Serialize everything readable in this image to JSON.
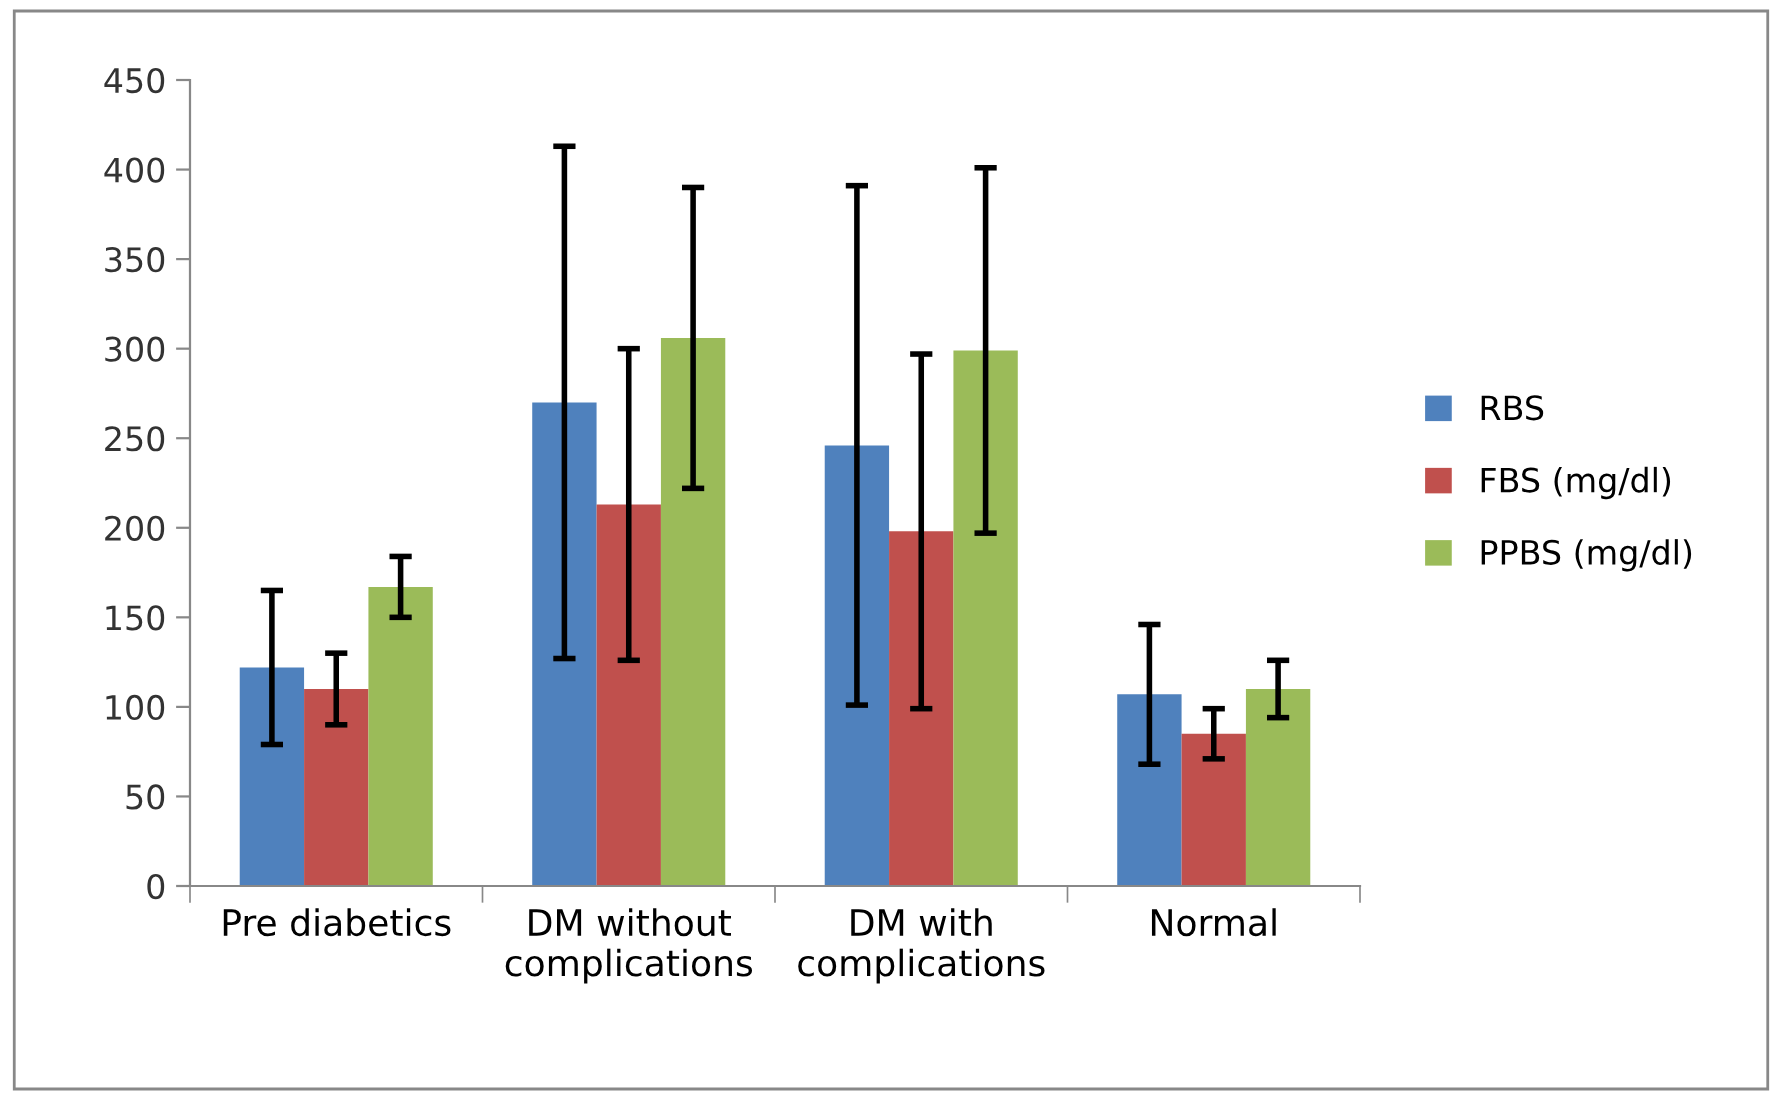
{
  "chart_data": {
    "type": "bar",
    "categories": [
      "Pre diabetics",
      "DM without\ncomplications",
      "DM with\ncomplications",
      "Normal"
    ],
    "series": [
      {
        "name": "RBS",
        "color": "#4f81bd",
        "values": [
          122,
          270,
          246,
          107
        ],
        "errors": [
          43,
          143,
          145,
          39
        ]
      },
      {
        "name": "FBS (mg/dl)",
        "color": "#c0504d",
        "values": [
          110,
          213,
          198,
          85
        ],
        "errors": [
          20,
          87,
          99,
          14
        ]
      },
      {
        "name": "PPBS (mg/dl)",
        "color": "#9bbb59",
        "values": [
          167,
          306,
          299,
          110
        ],
        "errors": [
          17,
          84,
          102,
          16
        ]
      }
    ],
    "ylim": [
      0,
      450
    ],
    "yticks": [
      0,
      50,
      100,
      150,
      200,
      250,
      300,
      350,
      400,
      450
    ],
    "grid": false,
    "legend": "right"
  }
}
